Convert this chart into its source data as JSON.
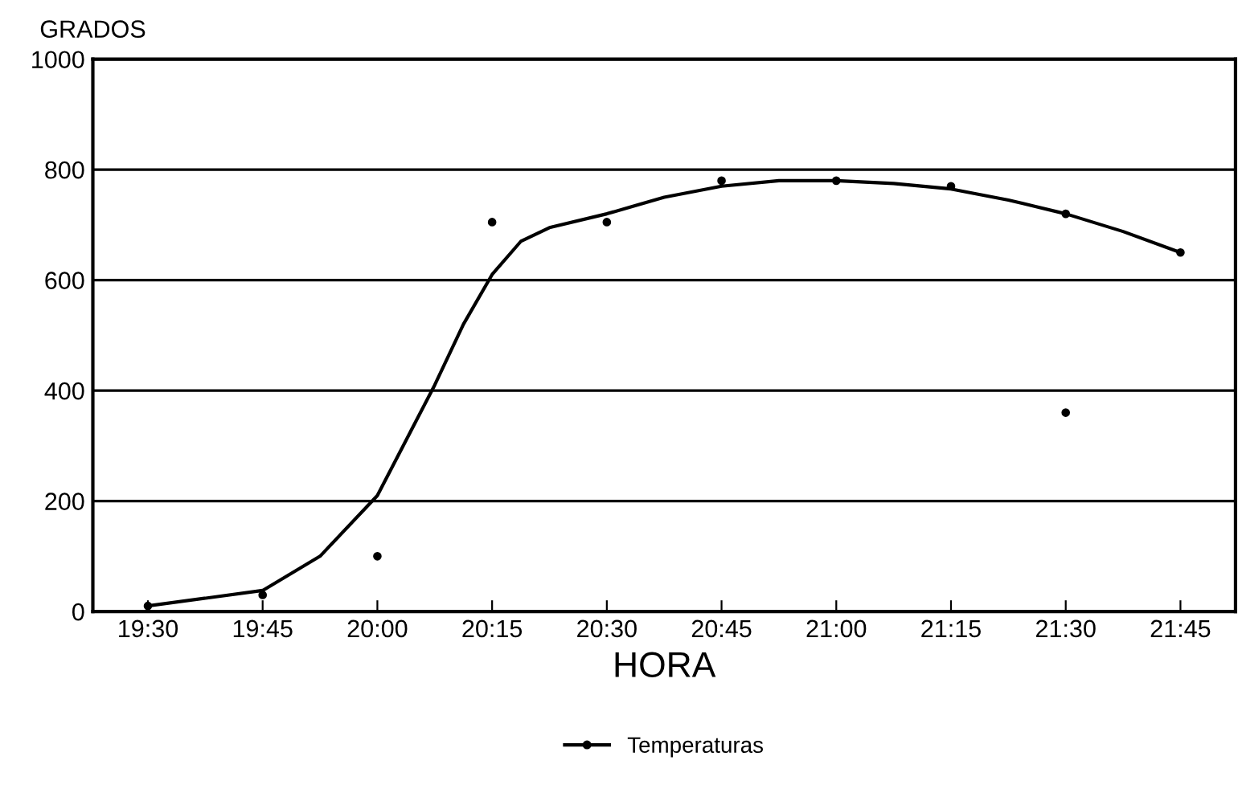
{
  "chart_data": {
    "type": "line",
    "xlabel": "HORA",
    "ylabel": "GRADOS",
    "xlim": [
      19.38,
      21.87
    ],
    "ylim": [
      0,
      1000
    ],
    "xticks": [
      {
        "value": 19.5,
        "label": "19:30"
      },
      {
        "value": 19.75,
        "label": "19:45"
      },
      {
        "value": 20.0,
        "label": "20:00"
      },
      {
        "value": 20.25,
        "label": "20:15"
      },
      {
        "value": 20.5,
        "label": "20:30"
      },
      {
        "value": 20.75,
        "label": "20:45"
      },
      {
        "value": 21.0,
        "label": "21:00"
      },
      {
        "value": 21.25,
        "label": "21:15"
      },
      {
        "value": 21.5,
        "label": "21:30"
      },
      {
        "value": 21.75,
        "label": "21:45"
      }
    ],
    "yticks": [
      0,
      200,
      400,
      600,
      800,
      1000
    ],
    "grid": "y",
    "legend": "bottom",
    "series": [
      {
        "name": "Temperaturas",
        "color": "#000000",
        "marker": "none",
        "x": [
          19.5,
          19.75,
          19.875,
          20.0,
          20.0625,
          20.125,
          20.1875,
          20.25,
          20.3125,
          20.375,
          20.5,
          20.625,
          20.75,
          20.875,
          21.0,
          21.125,
          21.25,
          21.375,
          21.5,
          21.625,
          21.75
        ],
        "values": [
          10,
          38,
          100,
          210,
          310,
          410,
          520,
          610,
          670,
          695,
          720,
          750,
          770,
          780,
          780,
          775,
          765,
          745,
          720,
          688,
          650
        ]
      },
      {
        "type": "scatter",
        "color": "#000000",
        "marker": "circle",
        "x": [
          19.5,
          19.75,
          20.0,
          20.25,
          20.5,
          20.75,
          21.0,
          21.25,
          21.5,
          21.5,
          21.75
        ],
        "values": [
          10,
          30,
          100,
          705,
          705,
          780,
          780,
          770,
          720,
          360,
          650
        ]
      }
    ]
  }
}
